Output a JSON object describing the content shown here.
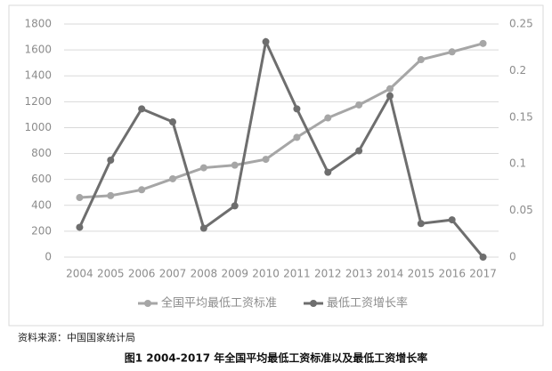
{
  "chart_data": {
    "type": "line",
    "categories": [
      2004,
      2005,
      2006,
      2007,
      2008,
      2009,
      2010,
      2011,
      2012,
      2013,
      2014,
      2015,
      2016,
      2017
    ],
    "series": [
      {
        "name": "全国平均最低工资标准",
        "color": "#a6a6a6",
        "values": [
          460,
          475,
          520,
          605,
          690,
          710,
          755,
          925,
          1075,
          1175,
          1300,
          1525,
          1585,
          1650
        ]
      },
      {
        "name": "最低工资增长率",
        "color": "#6e6e6e",
        "axis": "y2",
        "values": [
          0.032,
          0.104,
          0.159,
          0.145,
          0.031,
          0.055,
          0.231,
          0.159,
          0.091,
          0.114,
          0.173,
          0.036,
          0.04,
          0
        ]
      }
    ],
    "ylim": [
      0,
      1800
    ],
    "yticks": [
      0,
      200,
      400,
      600,
      800,
      1000,
      1200,
      1400,
      1600,
      1800
    ],
    "y2lim": [
      0,
      0.25
    ],
    "y2ticks": [
      0,
      0.05,
      0.1,
      0.15,
      0.2,
      0.25
    ],
    "grid": true,
    "legend": "bottom",
    "source": "资料来源：中国国家统计局",
    "caption": "图1   2004-2017 年全国平均最低工资标准以及最低工资增长率"
  }
}
